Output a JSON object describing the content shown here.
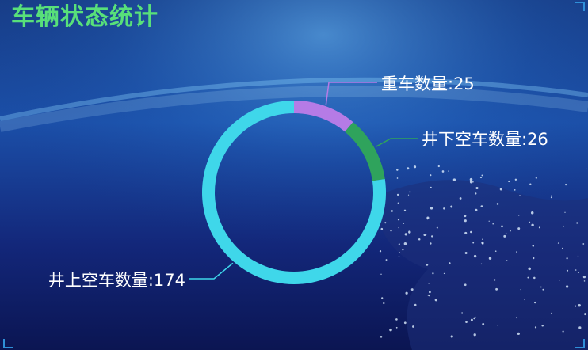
{
  "title": "车辆状态统计",
  "colors": {
    "title": "#58e07a",
    "label": "#ffffff",
    "background_top": "#1a5db3",
    "background_bottom": "#0c1a5e"
  },
  "chart_data": {
    "type": "pie",
    "variant": "donut",
    "title": "车辆状态统计",
    "slices": [
      {
        "name": "重车数量",
        "value": 25,
        "color": "#b57be6",
        "label": "重车数量:25"
      },
      {
        "name": "井下空车数量",
        "value": 26,
        "color": "#2fa35c",
        "label": "井下空车数量:26"
      },
      {
        "name": "井上空车数量",
        "value": 174,
        "color": "#3fd7ea",
        "label": "井上空车数量:174"
      }
    ],
    "legend": "none"
  }
}
